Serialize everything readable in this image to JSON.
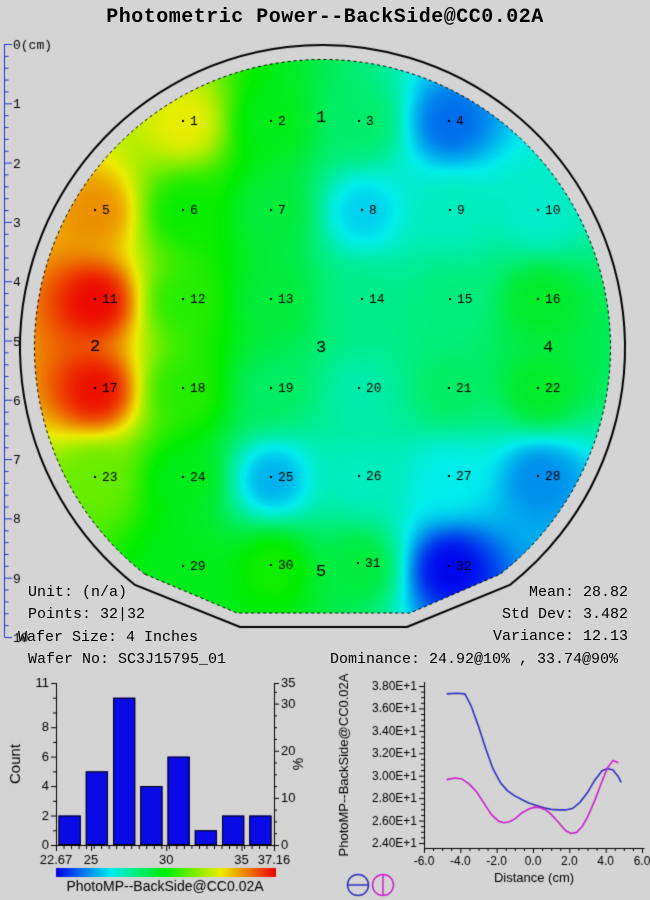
{
  "title": "Photometric Power--BackSide@CC0.02A",
  "colors": {
    "background": "#d4d4d4",
    "ruler": "#2233cc",
    "outline": "#000000",
    "bar_fill": "#0a0ae6",
    "curve_horizontal": "#3030c0",
    "curve_vertical": "#cc22cc",
    "colormap_min": "#0000e0",
    "colormap_max": "#e41000"
  },
  "ruler": {
    "labels": [
      "0(cm)",
      "1",
      "2",
      "3",
      "4",
      "5",
      "6",
      "7",
      "8",
      "9",
      "10"
    ]
  },
  "stats": {
    "left": [
      "Unit: (n/a)",
      "Points: 32|32",
      "Wafer Size: 4 Inches",
      "Wafer No: SC3J15795_01"
    ],
    "right": [
      "Mean: 28.82",
      "Std Dev: 3.482",
      "Variance: 12.13"
    ],
    "dominance": "Dominance: 24.92@10% , 33.74@90%"
  },
  "chart_data": [
    {
      "type": "heatmap",
      "name": "wafer-map",
      "title": "Photometric Power--BackSide@CC0.02A",
      "colormap": "rainbow-blue-to-red",
      "value_min": 22.67,
      "value_max": 37.16,
      "points": [
        {
          "label": "1",
          "x": 183,
          "y": 122,
          "value": 33.5
        },
        {
          "label": "2",
          "x": 271,
          "y": 122,
          "value": 29.5
        },
        {
          "label": "3",
          "x": 359,
          "y": 122,
          "value": 28.3
        },
        {
          "label": "4",
          "x": 449,
          "y": 122,
          "value": 24.3
        },
        {
          "label": "5",
          "x": 95,
          "y": 211,
          "value": 35.0
        },
        {
          "label": "6",
          "x": 183,
          "y": 211,
          "value": 30.0
        },
        {
          "label": "7",
          "x": 271,
          "y": 211,
          "value": 29.0
        },
        {
          "label": "8",
          "x": 362,
          "y": 211,
          "value": 25.8
        },
        {
          "label": "9",
          "x": 450,
          "y": 211,
          "value": 27.0
        },
        {
          "label": "10",
          "x": 538,
          "y": 211,
          "value": 26.8
        },
        {
          "label": "11",
          "x": 95,
          "y": 300,
          "value": 37.1
        },
        {
          "label": "12",
          "x": 183,
          "y": 300,
          "value": 30.5
        },
        {
          "label": "13",
          "x": 271,
          "y": 300,
          "value": 29.0
        },
        {
          "label": "14",
          "x": 362,
          "y": 300,
          "value": 27.8
        },
        {
          "label": "15",
          "x": 450,
          "y": 300,
          "value": 28.0
        },
        {
          "label": "16",
          "x": 538,
          "y": 300,
          "value": 29.3
        },
        {
          "label": "17",
          "x": 95,
          "y": 389,
          "value": 37.0
        },
        {
          "label": "18",
          "x": 183,
          "y": 389,
          "value": 30.5
        },
        {
          "label": "19",
          "x": 271,
          "y": 389,
          "value": 28.4
        },
        {
          "label": "20",
          "x": 359,
          "y": 389,
          "value": 27.3
        },
        {
          "label": "21",
          "x": 449,
          "y": 389,
          "value": 28.4
        },
        {
          "label": "22",
          "x": 538,
          "y": 389,
          "value": 29.3
        },
        {
          "label": "23",
          "x": 95,
          "y": 478,
          "value": 31.5
        },
        {
          "label": "24",
          "x": 183,
          "y": 478,
          "value": 29.5
        },
        {
          "label": "25",
          "x": 271,
          "y": 478,
          "value": 25.3
        },
        {
          "label": "26",
          "x": 359,
          "y": 477,
          "value": 27.0
        },
        {
          "label": "27",
          "x": 449,
          "y": 477,
          "value": 26.3
        },
        {
          "label": "28",
          "x": 538,
          "y": 477,
          "value": 24.8
        },
        {
          "label": "29",
          "x": 183,
          "y": 567,
          "value": 29.5
        },
        {
          "label": "30",
          "x": 271,
          "y": 566,
          "value": 30.2
        },
        {
          "label": "31",
          "x": 358,
          "y": 564,
          "value": 29.0
        },
        {
          "label": "32",
          "x": 449,
          "y": 567,
          "value": 22.7
        }
      ],
      "zone_labels": [
        {
          "label": "1",
          "x": 321,
          "y": 116
        },
        {
          "label": "2",
          "x": 95,
          "y": 345
        },
        {
          "label": "3",
          "x": 321,
          "y": 346
        },
        {
          "label": "4",
          "x": 548,
          "y": 346
        },
        {
          "label": "5",
          "x": 321,
          "y": 570
        }
      ]
    },
    {
      "type": "bar",
      "name": "value-histogram",
      "xlim": [
        22.67,
        37.16
      ],
      "ylim": [
        0,
        11
      ],
      "counts": [
        2,
        5,
        10,
        4,
        6,
        1,
        2,
        2
      ],
      "n_bins": 8,
      "x_tick_labels": [
        "22.67",
        "25",
        "30",
        "35",
        "37.16"
      ],
      "x_tick_values": [
        22.67,
        25,
        30,
        35,
        37.16
      ],
      "y_ticks": [
        0,
        2,
        4,
        6,
        8
      ],
      "y_top_label": 11,
      "y2_ticks": [
        0,
        10,
        20,
        30
      ],
      "y2_top_label": 35,
      "total_points": 32,
      "ylabel": "Count",
      "y2label": "%",
      "colorbar_label": "PhotoMP--BackSide@CC0.02A"
    },
    {
      "type": "line",
      "name": "cross-section-profile",
      "xlabel": "Distance (cm)",
      "ylabel": "PhotoMP--BackSide@CC0.02A",
      "xlim": [
        -6.0,
        6.0
      ],
      "ylim": [
        24,
        38
      ],
      "x_tick_labels": [
        "-6.0",
        "-4.0",
        "-2.0",
        "0.0",
        "2.0",
        "4.0",
        "6.0"
      ],
      "y_tick_labels": [
        "2.40E+1",
        "2.60E+1",
        "2.80E+1",
        "3.00E+1",
        "3.20E+1",
        "3.40E+1",
        "3.60E+1",
        "3.80E+1"
      ],
      "legend": [
        {
          "name": "horizontal-cut",
          "symbol": "circle-horizontal-line",
          "color": "#3030c0"
        },
        {
          "name": "vertical-cut",
          "symbol": "circle-vertical-line",
          "color": "#cc22cc"
        }
      ],
      "series": [
        {
          "name": "horizontal-cut",
          "color": "#3030c0",
          "points": [
            [
              -4.75,
              37.3
            ],
            [
              -4.2,
              37.35
            ],
            [
              -3.75,
              37.3
            ],
            [
              -3.4,
              36.2
            ],
            [
              -3.0,
              34.4
            ],
            [
              -2.6,
              32.4
            ],
            [
              -2.2,
              30.6
            ],
            [
              -1.8,
              29.4
            ],
            [
              -1.4,
              28.65
            ],
            [
              -1.0,
              28.2
            ],
            [
              -0.6,
              27.85
            ],
            [
              -0.2,
              27.55
            ],
            [
              0.2,
              27.35
            ],
            [
              0.6,
              27.15
            ],
            [
              1.0,
              27.0
            ],
            [
              1.4,
              26.95
            ],
            [
              1.8,
              26.95
            ],
            [
              2.2,
              27.1
            ],
            [
              2.6,
              27.65
            ],
            [
              3.0,
              28.5
            ],
            [
              3.4,
              29.6
            ],
            [
              3.8,
              30.45
            ],
            [
              4.1,
              30.65
            ],
            [
              4.4,
              30.5
            ],
            [
              4.7,
              29.9
            ],
            [
              4.85,
              29.4
            ]
          ]
        },
        {
          "name": "vertical-cut",
          "color": "#cc22cc",
          "points": [
            [
              -4.75,
              29.65
            ],
            [
              -4.3,
              29.8
            ],
            [
              -3.9,
              29.7
            ],
            [
              -3.5,
              29.25
            ],
            [
              -3.1,
              28.55
            ],
            [
              -2.7,
              27.55
            ],
            [
              -2.3,
              26.55
            ],
            [
              -1.9,
              25.95
            ],
            [
              -1.6,
              25.8
            ],
            [
              -1.3,
              25.9
            ],
            [
              -1.0,
              26.15
            ],
            [
              -0.6,
              26.7
            ],
            [
              -0.2,
              27.05
            ],
            [
              0.1,
              27.2
            ],
            [
              0.4,
              27.15
            ],
            [
              0.7,
              26.95
            ],
            [
              1.0,
              26.55
            ],
            [
              1.4,
              25.85
            ],
            [
              1.8,
              25.1
            ],
            [
              2.1,
              24.85
            ],
            [
              2.4,
              24.95
            ],
            [
              2.7,
              25.45
            ],
            [
              3.0,
              26.3
            ],
            [
              3.4,
              27.8
            ],
            [
              3.8,
              29.5
            ],
            [
              4.1,
              30.7
            ],
            [
              4.4,
              31.35
            ],
            [
              4.7,
              31.15
            ]
          ]
        }
      ]
    }
  ]
}
